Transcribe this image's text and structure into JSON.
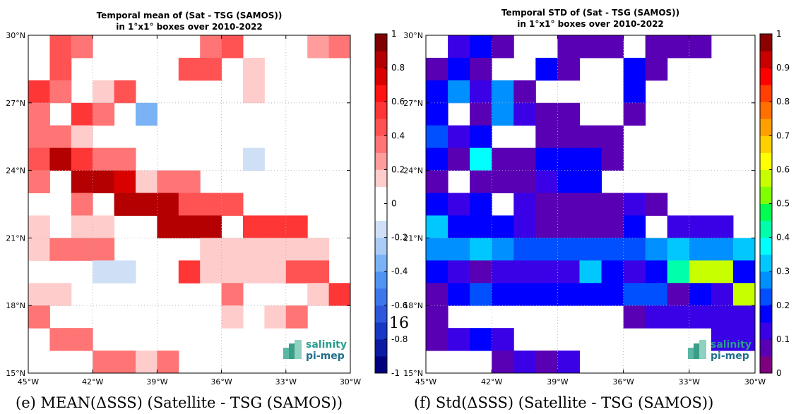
{
  "page_number": "16",
  "chart_data": [
    {
      "type": "heatmap",
      "title_line1": "Temporal mean of (Sat - TSG (SAMOS))",
      "title_line2": "in 1°x1° boxes over 2010-2022",
      "caption": "(e) MEAN(ΔSSS) (Satellite - TSG (SAMOS))",
      "x_ticks": [
        "45°W",
        "42°W",
        "39°W",
        "36°W",
        "33°W",
        "30°W"
      ],
      "y_ticks": [
        "30°N",
        "27°N",
        "24°N",
        "21°N",
        "18°N",
        "15°N"
      ],
      "x_range": [
        -45,
        -30
      ],
      "y_range": [
        15,
        30
      ],
      "colorbar": {
        "min": -1,
        "max": 1,
        "ticks": [
          "1",
          "0.8",
          "0.6",
          "0.4",
          "0.2",
          "0",
          "-0.2",
          "-0.4",
          "-0.6",
          "-0.8",
          "-1"
        ],
        "colors": [
          "#00007f",
          "#0b1aa2",
          "#1638c4",
          "#2e57db",
          "#3d77ec",
          "#5193f2",
          "#7bb2f5",
          "#a9cbf4",
          "#cfe0f6",
          "#ffffff",
          "#ffffff",
          "#ffcccc",
          "#ff9d9d",
          "#ff7474",
          "#ff5353",
          "#ff3636",
          "#ff1212",
          "#d90000",
          "#b40000",
          "#7f0000"
        ]
      },
      "grid": true,
      "logo": "salinity pi-mep",
      "cells": [
        [
          44,
          29,
          0.45
        ],
        [
          43,
          29,
          0.3
        ],
        [
          37,
          29,
          0.35
        ],
        [
          36,
          29,
          0.48
        ],
        [
          32,
          29,
          0.2
        ],
        [
          31,
          29,
          0.3
        ],
        [
          44,
          28,
          0.45
        ],
        [
          38,
          28,
          0.48
        ],
        [
          37,
          28,
          0.48
        ],
        [
          35,
          28,
          0.1
        ],
        [
          45,
          27,
          0.55
        ],
        [
          44,
          27,
          0.3
        ],
        [
          42,
          27,
          0.15
        ],
        [
          41,
          27,
          0.48
        ],
        [
          35,
          27,
          0.1
        ],
        [
          45,
          26,
          0.3
        ],
        [
          43,
          26,
          0.55
        ],
        [
          42,
          26,
          0.3
        ],
        [
          40,
          26,
          -0.35
        ],
        [
          45,
          25,
          0.35
        ],
        [
          44,
          25,
          0.35
        ],
        [
          43,
          25,
          0.15
        ],
        [
          45,
          24,
          0.48
        ],
        [
          44,
          24,
          0.85
        ],
        [
          43,
          24,
          0.55
        ],
        [
          42,
          24,
          0.3
        ],
        [
          41,
          24,
          0.3
        ],
        [
          35,
          24,
          -0.15
        ],
        [
          45,
          23,
          0.35
        ],
        [
          43,
          23,
          0.8
        ],
        [
          42,
          23,
          0.8
        ],
        [
          41,
          23,
          0.72
        ],
        [
          40,
          23,
          0.15
        ],
        [
          39,
          23,
          0.3
        ],
        [
          38,
          23,
          0.3
        ],
        [
          43,
          22,
          0.3
        ],
        [
          41,
          22,
          0.82
        ],
        [
          40,
          22,
          0.82
        ],
        [
          39,
          22,
          0.82
        ],
        [
          38,
          22,
          0.4
        ],
        [
          37,
          22,
          0.4
        ],
        [
          36,
          22,
          0.4
        ],
        [
          45,
          21,
          0.15
        ],
        [
          43,
          21,
          0.15
        ],
        [
          42,
          21,
          0.15
        ],
        [
          39,
          21,
          0.82
        ],
        [
          38,
          21,
          0.82
        ],
        [
          37,
          21,
          0.82
        ],
        [
          35,
          21,
          0.5
        ],
        [
          34,
          21,
          0.58
        ],
        [
          33,
          21,
          0.5
        ],
        [
          45,
          20,
          0.15
        ],
        [
          44,
          20,
          0.3
        ],
        [
          43,
          20,
          0.3
        ],
        [
          42,
          20,
          0.3
        ],
        [
          37,
          20,
          0.15
        ],
        [
          36,
          20,
          0.15
        ],
        [
          35,
          20,
          0.15
        ],
        [
          34,
          20,
          0.15
        ],
        [
          33,
          20,
          0.15
        ],
        [
          32,
          20,
          0.15
        ],
        [
          42,
          19,
          -0.15
        ],
        [
          41,
          19,
          -0.15
        ],
        [
          38,
          19,
          0.5
        ],
        [
          37,
          19,
          0.15
        ],
        [
          36,
          19,
          0.15
        ],
        [
          35,
          19,
          0.15
        ],
        [
          34,
          19,
          0.15
        ],
        [
          33,
          19,
          0.48
        ],
        [
          32,
          19,
          0.48
        ],
        [
          45,
          18,
          0.15
        ],
        [
          44,
          18,
          0.15
        ],
        [
          36,
          18,
          0.3
        ],
        [
          32,
          18,
          0.15
        ],
        [
          31,
          18,
          0.5
        ],
        [
          30,
          18,
          0.85
        ],
        [
          45,
          17,
          0.3
        ],
        [
          36,
          17,
          0.15
        ],
        [
          34,
          17,
          0.15
        ],
        [
          33,
          17,
          0.3
        ],
        [
          44,
          16,
          0.3
        ],
        [
          43,
          16,
          0.3
        ],
        [
          42,
          15,
          0.3
        ],
        [
          41,
          15,
          0.3
        ],
        [
          40,
          15,
          0.15
        ],
        [
          39,
          15,
          0.3
        ]
      ]
    },
    {
      "type": "heatmap",
      "title_line1": "Temporal STD of (Sat - TSG (SAMOS))",
      "title_line2": "in 1°x1° boxes over 2010-2022",
      "caption": "(f) Std(ΔSSS) (Satellite - TSG (SAMOS))",
      "x_ticks": [
        "45°W",
        "42°W",
        "39°W",
        "36°W",
        "33°W",
        "30°W"
      ],
      "y_ticks": [
        "30°N",
        "27°N",
        "24°N",
        "21°N",
        "18°N",
        "15°N"
      ],
      "x_range": [
        -45,
        -30
      ],
      "y_range": [
        15,
        30
      ],
      "colorbar": {
        "min": 0,
        "max": 1,
        "ticks": [
          "1",
          "0.9",
          "0.8",
          "0.7",
          "0.6",
          "0.5",
          "0.4",
          "0.3",
          "0.2",
          "0.1",
          "0"
        ],
        "colors": [
          "#7f007f",
          "#5a00b4",
          "#3a00e6",
          "#0000ff",
          "#0050ff",
          "#0090ff",
          "#00c8ff",
          "#00ffff",
          "#00ffaa",
          "#00ff50",
          "#80ff00",
          "#c8ff00",
          "#ffff00",
          "#ffd000",
          "#ffa000",
          "#ff7000",
          "#ff4000",
          "#ff0000",
          "#c80000",
          "#8b0000"
        ]
      },
      "grid": true,
      "logo": "salinity pi-mep",
      "cells": [
        [
          44,
          29,
          0.1
        ],
        [
          43,
          29,
          0.15
        ],
        [
          42,
          29,
          0.05
        ],
        [
          39,
          29,
          0.08
        ],
        [
          38,
          29,
          0.08
        ],
        [
          37,
          29,
          0.08
        ],
        [
          35,
          29,
          0.08
        ],
        [
          34,
          29,
          0.08
        ],
        [
          33,
          29,
          0.05
        ],
        [
          45,
          28,
          0.05
        ],
        [
          44,
          28,
          0.15
        ],
        [
          43,
          28,
          0.05
        ],
        [
          40,
          28,
          0.15
        ],
        [
          39,
          28,
          0.05
        ],
        [
          36,
          28,
          0.15
        ],
        [
          35,
          28,
          0.08
        ],
        [
          45,
          27,
          0.15
        ],
        [
          44,
          27,
          0.27
        ],
        [
          43,
          27,
          0.1
        ],
        [
          42,
          27,
          0.27
        ],
        [
          41,
          27,
          0.05
        ],
        [
          36,
          27,
          0.15
        ],
        [
          45,
          26,
          0.15
        ],
        [
          43,
          26,
          0.05
        ],
        [
          42,
          26,
          0.27
        ],
        [
          41,
          26,
          0.1
        ],
        [
          40,
          26,
          0.05
        ],
        [
          39,
          26,
          0.05
        ],
        [
          36,
          26,
          0.08
        ],
        [
          45,
          25,
          0.2
        ],
        [
          44,
          25,
          0.1
        ],
        [
          43,
          25,
          0.15
        ],
        [
          40,
          25,
          0.08
        ],
        [
          39,
          25,
          0.08
        ],
        [
          38,
          25,
          0.08
        ],
        [
          37,
          25,
          0.05
        ],
        [
          45,
          24,
          0.18
        ],
        [
          44,
          24,
          0.05
        ],
        [
          43,
          24,
          0.38
        ],
        [
          42,
          24,
          0.05
        ],
        [
          41,
          24,
          0.05
        ],
        [
          40,
          24,
          0.18
        ],
        [
          39,
          24,
          0.15
        ],
        [
          38,
          24,
          0.18
        ],
        [
          37,
          24,
          0.05
        ],
        [
          45,
          23,
          0.05
        ],
        [
          43,
          23,
          0.05
        ],
        [
          42,
          23,
          0.05
        ],
        [
          41,
          23,
          0.05
        ],
        [
          40,
          23,
          0.12
        ],
        [
          39,
          23,
          0.18
        ],
        [
          38,
          23,
          0.18
        ],
        [
          45,
          22,
          0.15
        ],
        [
          44,
          22,
          0.1
        ],
        [
          43,
          22,
          0.18
        ],
        [
          41,
          22,
          0.1
        ],
        [
          40,
          22,
          0.05
        ],
        [
          39,
          22,
          0.05
        ],
        [
          38,
          22,
          0.05
        ],
        [
          37,
          22,
          0.05
        ],
        [
          36,
          22,
          0.1
        ],
        [
          35,
          22,
          0.05
        ],
        [
          45,
          21,
          0.3
        ],
        [
          44,
          21,
          0.18
        ],
        [
          43,
          21,
          0.18
        ],
        [
          42,
          21,
          0.15
        ],
        [
          41,
          21,
          0.1
        ],
        [
          40,
          21,
          0.05
        ],
        [
          39,
          21,
          0.05
        ],
        [
          38,
          21,
          0.05
        ],
        [
          37,
          21,
          0.05
        ],
        [
          36,
          21,
          0.15
        ],
        [
          34,
          21,
          0.1
        ],
        [
          33,
          21,
          0.1
        ],
        [
          32,
          21,
          0.1
        ],
        [
          45,
          20,
          0.25
        ],
        [
          44,
          20,
          0.25
        ],
        [
          43,
          20,
          0.3
        ],
        [
          42,
          20,
          0.25
        ],
        [
          41,
          20,
          0.2
        ],
        [
          40,
          20,
          0.2
        ],
        [
          39,
          20,
          0.2
        ],
        [
          38,
          20,
          0.2
        ],
        [
          37,
          20,
          0.2
        ],
        [
          36,
          20,
          0.2
        ],
        [
          35,
          20,
          0.25
        ],
        [
          34,
          20,
          0.3
        ],
        [
          33,
          20,
          0.25
        ],
        [
          32,
          20,
          0.25
        ],
        [
          31,
          20,
          0.3
        ],
        [
          30,
          20,
          0.25
        ],
        [
          45,
          19,
          0.15
        ],
        [
          44,
          19,
          0.1
        ],
        [
          43,
          19,
          0.05
        ],
        [
          42,
          19,
          0.12
        ],
        [
          41,
          19,
          0.12
        ],
        [
          40,
          19,
          0.1
        ],
        [
          39,
          19,
          0.1
        ],
        [
          38,
          19,
          0.3
        ],
        [
          37,
          19,
          0.18
        ],
        [
          36,
          19,
          0.1
        ],
        [
          35,
          19,
          0.15
        ],
        [
          34,
          19,
          0.42
        ],
        [
          33,
          19,
          0.58
        ],
        [
          32,
          19,
          0.58
        ],
        [
          31,
          19,
          0.18
        ],
        [
          45,
          18,
          0.08
        ],
        [
          44,
          18,
          0.15
        ],
        [
          43,
          18,
          0.2
        ],
        [
          42,
          18,
          0.18
        ],
        [
          41,
          18,
          0.18
        ],
        [
          40,
          18,
          0.15
        ],
        [
          39,
          18,
          0.15
        ],
        [
          38,
          18,
          0.18
        ],
        [
          37,
          18,
          0.15
        ],
        [
          36,
          18,
          0.2
        ],
        [
          35,
          18,
          0.2
        ],
        [
          34,
          18,
          0.05
        ],
        [
          33,
          18,
          0.15
        ],
        [
          32,
          18,
          0.1
        ],
        [
          31,
          18,
          0.58
        ],
        [
          30,
          18,
          0.15
        ],
        [
          45,
          17,
          0.05
        ],
        [
          36,
          17,
          0.05
        ],
        [
          35,
          17,
          0.1
        ],
        [
          34,
          17,
          0.12
        ],
        [
          33,
          17,
          0.12
        ],
        [
          32,
          17,
          0.1
        ],
        [
          31,
          17,
          0.1
        ],
        [
          30,
          17,
          0.05
        ],
        [
          45,
          16,
          0.05
        ],
        [
          44,
          16,
          0.1
        ],
        [
          43,
          16,
          0.15
        ],
        [
          42,
          16,
          0.1
        ],
        [
          32,
          16,
          0.1
        ],
        [
          31,
          16,
          0.1
        ],
        [
          30,
          16,
          0.05
        ],
        [
          42,
          15,
          0.05
        ],
        [
          41,
          15,
          0.1
        ],
        [
          40,
          15,
          0.05
        ],
        [
          39,
          15,
          0.1
        ]
      ]
    }
  ]
}
